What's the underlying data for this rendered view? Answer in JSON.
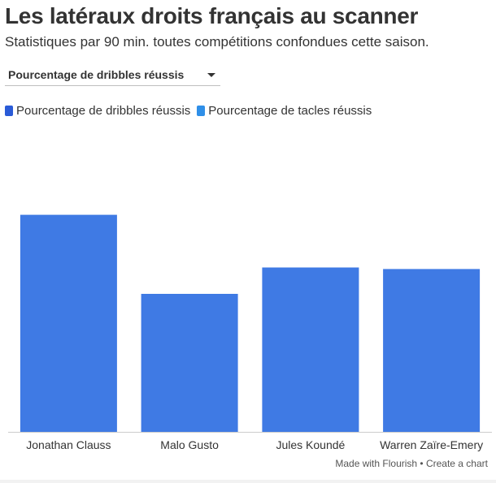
{
  "header": {
    "title": "Les latéraux droits français au scanner",
    "subtitle": "Statistiques par 90 min. toutes compétitions confondues cette saison."
  },
  "selector": {
    "value": "Pourcentage de dribbles réussis",
    "icon": "caret-down-icon"
  },
  "legend": [
    {
      "label": "Pourcentage de dribbles réussis",
      "color": "#2a5bd7"
    },
    {
      "label": "Pourcentage de tacles réussis",
      "color": "#2f8fe8"
    }
  ],
  "footer": {
    "credit": "Made with Flourish • Create a chart"
  },
  "chart_data": {
    "type": "bar",
    "title": "Les latéraux droits français au scanner",
    "subtitle": "Statistiques par 90 min. toutes compétitions confondues cette saison.",
    "categories": [
      "Jonathan Clauss",
      "Malo Gusto",
      "Jules Koundé",
      "Warren Zaïre-Emery"
    ],
    "series": [
      {
        "name": "Pourcentage de dribbles réussis",
        "values": [
          70,
          44.5,
          53,
          52.5
        ],
        "color": "#3f7ae4"
      }
    ],
    "ylim": [
      0,
      100
    ],
    "grid": false,
    "legend_position": "top-left"
  }
}
